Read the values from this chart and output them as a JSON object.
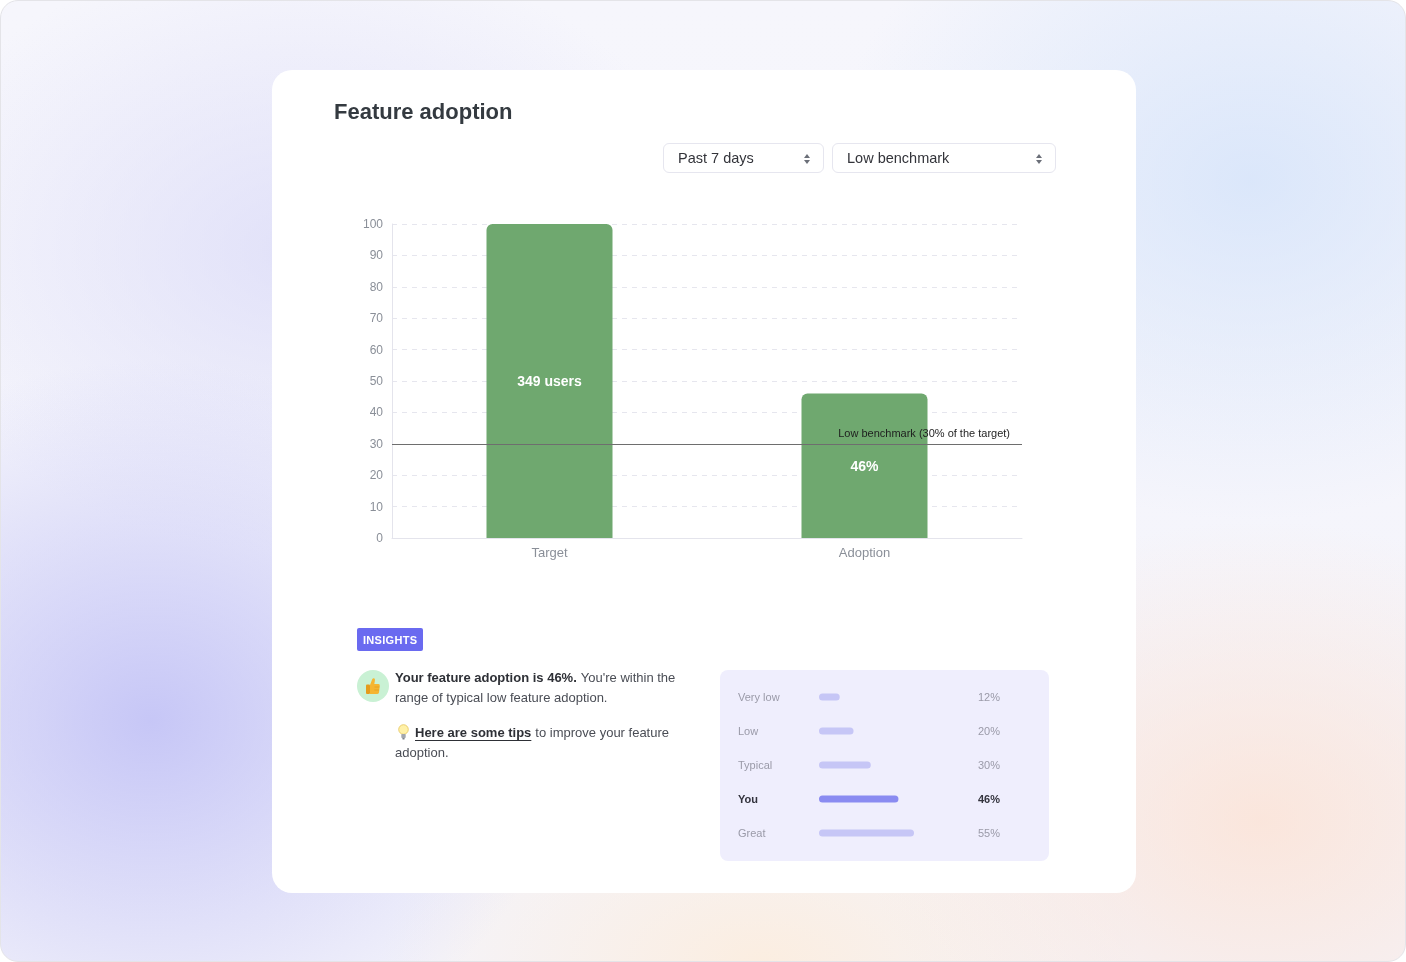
{
  "chart_data": [
    {
      "type": "bar",
      "title": "Feature adoption",
      "categories": [
        "Target",
        "Adoption"
      ],
      "values": [
        100,
        46
      ],
      "color": "#6fa86f",
      "value_labels": [
        null,
        "46%"
      ],
      "ylim": [
        0,
        100
      ],
      "yticks": [
        0,
        10,
        20,
        30,
        40,
        50,
        60,
        70,
        80,
        90,
        100
      ],
      "grid": "y",
      "ref_lines": [
        {
          "axis": "y",
          "value": 30,
          "label": "Low benchmark (30% of the target)",
          "color": "#6e6e6e",
          "line_style": "solid"
        }
      ],
      "annotations": [
        "Past 7 days",
        "Low benchmark",
        "349 users"
      ]
    },
    {
      "type": "other",
      "title": "INSIGHTS",
      "annotations": [
        "Your feature adoption is 46%.",
        "You're within the",
        "range of typical low feature adoption.",
        "Here are some tips",
        "to improve your feature",
        "adoption."
      ]
    },
    {
      "type": "bar",
      "orientation": "horizontal",
      "categories": [
        "Very low",
        "Low",
        "Typical",
        "You",
        "Great"
      ],
      "values": [
        12,
        20,
        30,
        46,
        55
      ],
      "colors": [
        "#c6c6f6",
        "#c6c6f6",
        "#c6c6f6",
        "#8a8bf1",
        "#c6c6f6"
      ],
      "value_labels": [
        "12%",
        "20%",
        "30%",
        "46%",
        "55%"
      ],
      "tick_labels": "y"
    }
  ]
}
